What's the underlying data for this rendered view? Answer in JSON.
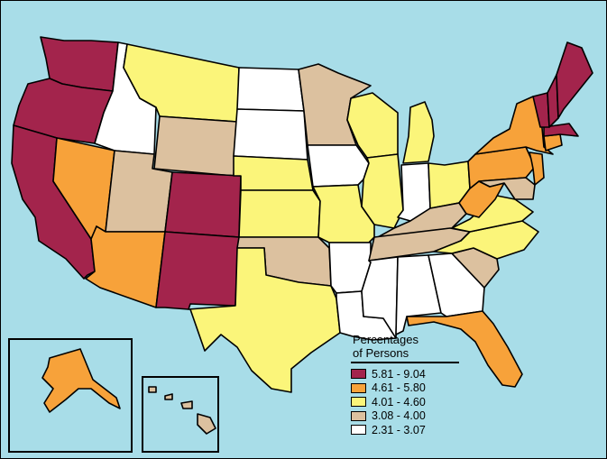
{
  "legend": {
    "title_line1": "Percentages",
    "title_line2": "of Persons",
    "entries": [
      {
        "label": "5.81 - 9.04",
        "color": "#a3244c"
      },
      {
        "label": "4.61 - 5.80",
        "color": "#f7a23a"
      },
      {
        "label": "4.01 - 4.60",
        "color": "#fbf57a"
      },
      {
        "label": "3.08 - 4.00",
        "color": "#dcc19f"
      },
      {
        "label": "2.31 - 3.07",
        "color": "#ffffff"
      }
    ]
  },
  "states": {
    "WA": 0,
    "OR": 0,
    "CA": 0,
    "CO": 0,
    "NM": 0,
    "ME": 0,
    "NH": 0,
    "VT": 0,
    "MA": 0,
    "NV": 1,
    "AZ": 1,
    "NY": 1,
    "PA": 1,
    "NJ": 1,
    "WV": 1,
    "FL": 1,
    "CT": 1,
    "AK": 1,
    "MT": 2,
    "NE": 2,
    "KS": 2,
    "TX": 2,
    "WI": 2,
    "IL": 2,
    "MI": 2,
    "MO": 2,
    "OH": 2,
    "VA": 2,
    "NC": 2,
    "MN": 3,
    "WY": 3,
    "UT": 3,
    "OK": 3,
    "KY": 3,
    "TN": 3,
    "SC": 3,
    "MD": 3,
    "HI": 3,
    "ID": 4,
    "ND": 4,
    "SD": 4,
    "IA": 4,
    "AR": 4,
    "LA": 4,
    "MS": 4,
    "AL": 4,
    "GA": 4,
    "IN": 4
  }
}
